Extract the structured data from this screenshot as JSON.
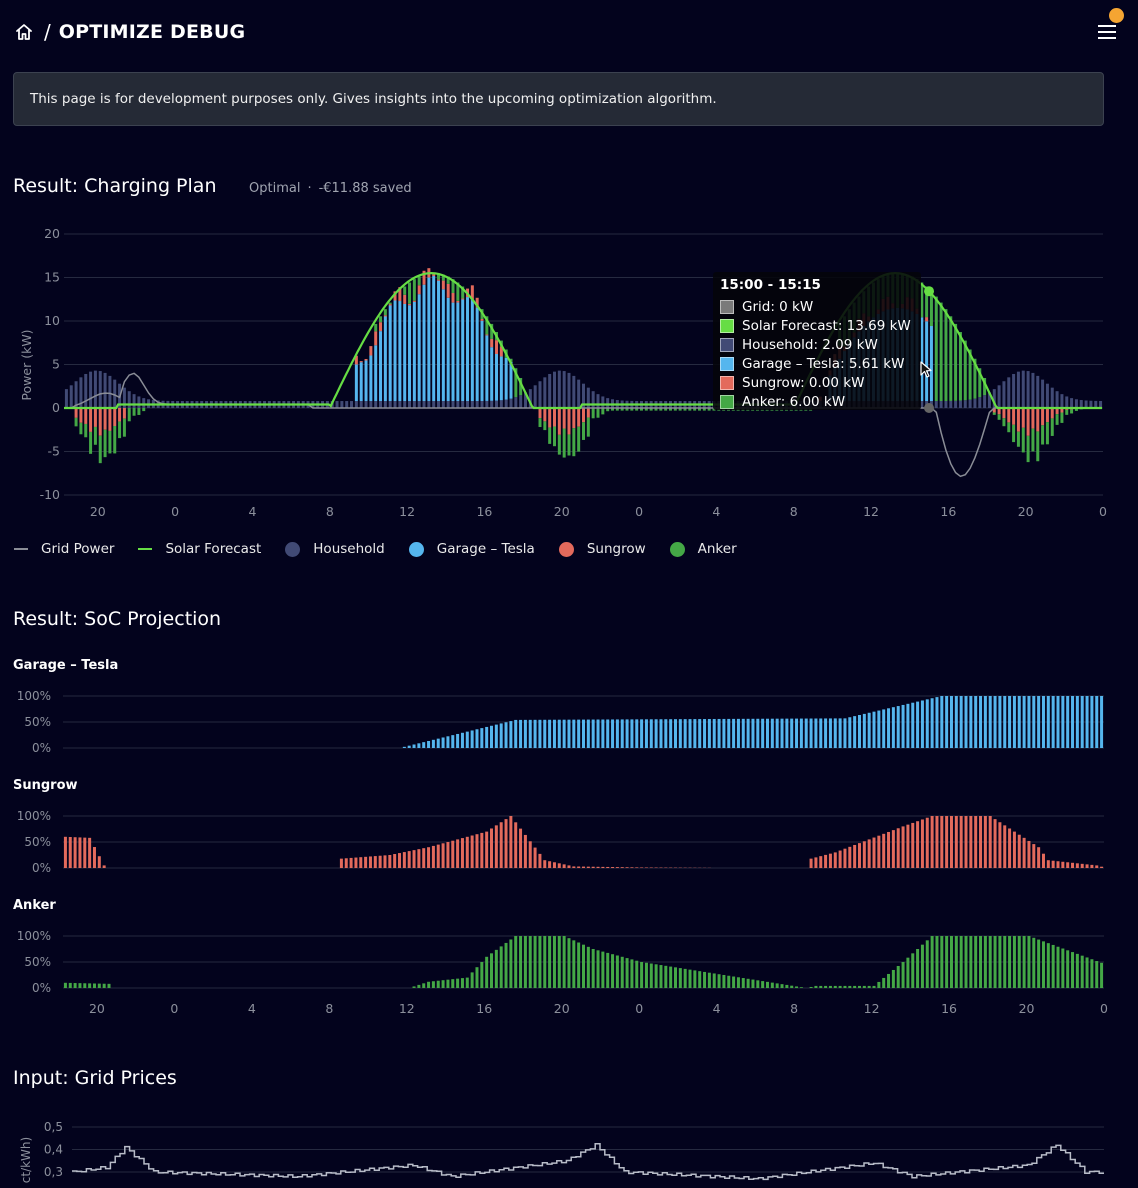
{
  "header": {
    "title": "OPTIMIZE DEBUG",
    "separator": "/",
    "home_icon": "home-icon",
    "menu_icon": "menu-icon"
  },
  "notice": {
    "text": "This page is for development purposes only. Gives insights into the upcoming optimization algorithm."
  },
  "charging_plan": {
    "title": "Result: Charging Plan",
    "status": "Optimal",
    "separator": "·",
    "savings": "-€11.88 saved",
    "legend": [
      {
        "label": "Grid Power",
        "color": "#8a8d96",
        "shape": "line"
      },
      {
        "label": "Solar Forecast",
        "color": "#66dd44",
        "shape": "line"
      },
      {
        "label": "Household",
        "color": "#414a75",
        "shape": "dot"
      },
      {
        "label": "Garage – Tesla",
        "color": "#55b6ee",
        "shape": "dot"
      },
      {
        "label": "Sungrow",
        "color": "#e36a5c",
        "shape": "dot"
      },
      {
        "label": "Anker",
        "color": "#44a846",
        "shape": "dot"
      }
    ],
    "tooltip": {
      "title": "15:00 - 15:15",
      "rows": [
        {
          "text": "Grid: 0 kW",
          "color": "#7a7a7a"
        },
        {
          "text": "Solar Forecast: 13.69 kW",
          "color": "#66dd44"
        },
        {
          "text": "Household: 2.09 kW",
          "color": "#414a75"
        },
        {
          "text": "Garage – Tesla: 5.61 kW",
          "color": "#55b6ee"
        },
        {
          "text": "Sungrow: 0.00 kW",
          "color": "#e36a5c"
        },
        {
          "text": "Anker: 6.00 kW",
          "color": "#44a846"
        }
      ]
    }
  },
  "soc": {
    "title": "Result: SoC Projection",
    "batteries": [
      {
        "name": "Garage – Tesla",
        "color": "#55b6ee"
      },
      {
        "name": "Sungrow",
        "color": "#e36a5c"
      },
      {
        "name": "Anker",
        "color": "#44a846"
      }
    ],
    "y_ticks": [
      "100%",
      "50%",
      "0%"
    ]
  },
  "grid_prices": {
    "title": "Input: Grid Prices",
    "y_ticks": [
      "0,5",
      "0,4",
      "0,3"
    ],
    "ylabel": "ct/kWh)"
  },
  "chart_data": [
    {
      "type": "bar",
      "title": "Result: Charging Plan",
      "ylabel": "Power (kW)",
      "ylim": [
        -10,
        20
      ],
      "y_ticks": [
        "20",
        "15",
        "10",
        "5",
        "0",
        "-5",
        "-10"
      ],
      "x_ticks": [
        "20",
        "0",
        "4",
        "8",
        "12",
        "16",
        "20",
        "0",
        "4",
        "8",
        "12",
        "16",
        "20",
        "0"
      ],
      "x_hours": [
        20,
        24,
        28,
        32,
        36,
        40,
        44,
        48,
        52,
        56,
        60,
        64,
        68,
        72
      ],
      "x_range_hours": [
        18.25,
        72
      ],
      "series": [
        {
          "name": "Solar Forecast",
          "type": "line",
          "days": [
            {
              "rise": 32,
              "set": 42.5,
              "peak": 15.5
            },
            {
              "rise": 56,
              "set": 66.5,
              "peak": 15.5
            }
          ],
          "morning_value": 0.4
        },
        {
          "name": "Grid Power",
          "type": "line",
          "mode": "net of solar, household and batteries",
          "min_value": -9
        },
        {
          "name": "Household",
          "type": "bar",
          "base": 0.8,
          "evening_peak": 4.3
        },
        {
          "name": "Garage – Tesla",
          "type": "bar",
          "day1_peak": 12
        },
        {
          "name": "Sungrow",
          "type": "bar",
          "discharge_peak": -4
        },
        {
          "name": "Anker",
          "type": "bar",
          "discharge_peak": -4
        }
      ],
      "highlight": {
        "time": "15:00 - 15:15",
        "hour": 63
      }
    },
    {
      "type": "bar",
      "title": "Garage – Tesla",
      "ylim": [
        0,
        100
      ],
      "x_range_hours": [
        18.25,
        72
      ],
      "soc_percent_by_hour": [
        [
          18.25,
          0
        ],
        [
          35.5,
          0
        ],
        [
          41.5,
          54
        ],
        [
          58.5,
          57
        ],
        [
          63.5,
          100
        ],
        [
          72,
          100
        ]
      ]
    },
    {
      "type": "bar",
      "title": "Sungrow",
      "ylim": [
        0,
        100
      ],
      "x_range_hours": [
        18.25,
        72
      ],
      "soc_percent_by_hour": [
        [
          18.25,
          60
        ],
        [
          19.5,
          58
        ],
        [
          20.25,
          5
        ],
        [
          20.5,
          0
        ],
        [
          32.25,
          0
        ],
        [
          32.5,
          18
        ],
        [
          35,
          25
        ],
        [
          37,
          40
        ],
        [
          40,
          70
        ],
        [
          41.25,
          100
        ],
        [
          43,
          15
        ],
        [
          44.5,
          3
        ],
        [
          48,
          1
        ],
        [
          53,
          0
        ],
        [
          56.5,
          0
        ],
        [
          56.75,
          18
        ],
        [
          58,
          30
        ],
        [
          61.5,
          80
        ],
        [
          63,
          100
        ],
        [
          66,
          100
        ],
        [
          68.5,
          40
        ],
        [
          69,
          15
        ],
        [
          71.5,
          5
        ],
        [
          72,
          0
        ]
      ]
    },
    {
      "type": "bar",
      "title": "Anker",
      "ylim": [
        0,
        100
      ],
      "x_range_hours": [
        18.25,
        72
      ],
      "soc_percent_by_hour": [
        [
          18.25,
          10
        ],
        [
          20.5,
          8
        ],
        [
          20.75,
          0
        ],
        [
          36,
          0
        ],
        [
          37,
          12
        ],
        [
          39,
          20
        ],
        [
          40,
          60
        ],
        [
          41.5,
          100
        ],
        [
          44,
          100
        ],
        [
          45.5,
          75
        ],
        [
          48,
          50
        ],
        [
          56,
          3
        ],
        [
          56.5,
          0
        ],
        [
          57,
          4
        ],
        [
          60,
          4
        ],
        [
          61.5,
          50
        ],
        [
          63,
          100
        ],
        [
          68,
          100
        ],
        [
          72,
          45
        ]
      ]
    },
    {
      "type": "line",
      "title": "Input: Grid Prices",
      "ylabel": "ct/kWh)",
      "y_ticks": [
        0.5,
        0.4,
        0.3
      ],
      "x_range_hours": [
        18.25,
        72
      ],
      "price_by_hour": [
        [
          18.25,
          0.3
        ],
        [
          20,
          0.32
        ],
        [
          21,
          0.41
        ],
        [
          22.5,
          0.3
        ],
        [
          30,
          0.28
        ],
        [
          36,
          0.33
        ],
        [
          38,
          0.28
        ],
        [
          44,
          0.35
        ],
        [
          45.5,
          0.42
        ],
        [
          47,
          0.3
        ],
        [
          54,
          0.27
        ],
        [
          60,
          0.34
        ],
        [
          62,
          0.28
        ],
        [
          68,
          0.33
        ],
        [
          69.5,
          0.42
        ],
        [
          71,
          0.3
        ],
        [
          72,
          0.3
        ]
      ]
    }
  ]
}
